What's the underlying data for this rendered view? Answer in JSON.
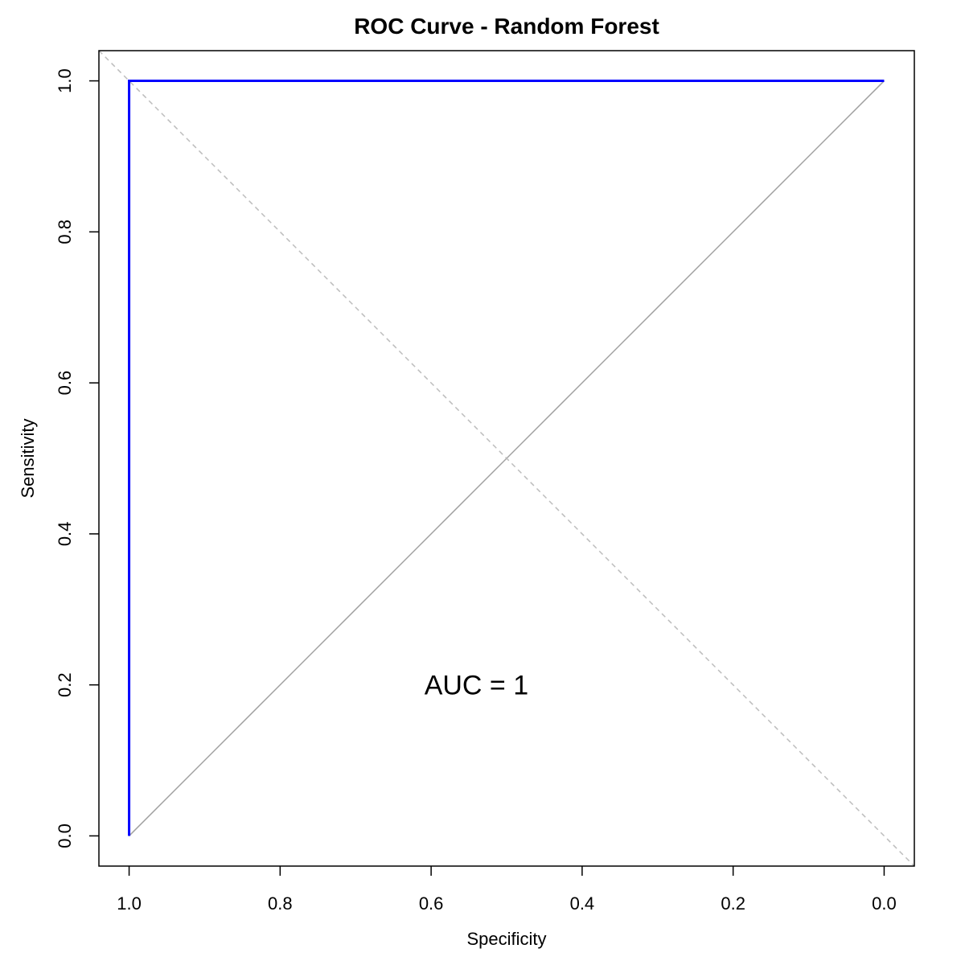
{
  "chart_data": {
    "type": "line",
    "title": "ROC Curve - Random Forest",
    "xlabel": "Specificity",
    "ylabel": "Sensitivity",
    "xlim": [
      1.04,
      -0.04
    ],
    "ylim": [
      -0.04,
      1.04
    ],
    "x_reversed": true,
    "x_ticks": [
      1.0,
      0.8,
      0.6,
      0.4,
      0.2,
      0.0
    ],
    "x_tick_labels": [
      "1.0",
      "0.8",
      "0.6",
      "0.4",
      "0.2",
      "0.0"
    ],
    "y_ticks": [
      0.0,
      0.2,
      0.4,
      0.6,
      0.8,
      1.0
    ],
    "y_tick_labels": [
      "0.0",
      "0.2",
      "0.4",
      "0.6",
      "0.8",
      "1.0"
    ],
    "grid": false,
    "series": [
      {
        "x": [
          1.0,
          1.0,
          0.0
        ],
        "y": [
          0.0,
          1.0,
          1.0
        ],
        "color": "#0000ff"
      }
    ],
    "reference_lines": [
      {
        "style": "solid",
        "color": "#a0a0a0",
        "from": [
          1.0,
          0.0
        ],
        "to": [
          0.0,
          1.0
        ]
      },
      {
        "style": "dashed",
        "color": "#bdbdbd",
        "from": [
          1.04,
          1.04
        ],
        "to": [
          -0.04,
          -0.04
        ]
      }
    ],
    "annotations": [
      {
        "text": "AUC = 1",
        "x": 0.54,
        "y": 0.2
      }
    ]
  }
}
